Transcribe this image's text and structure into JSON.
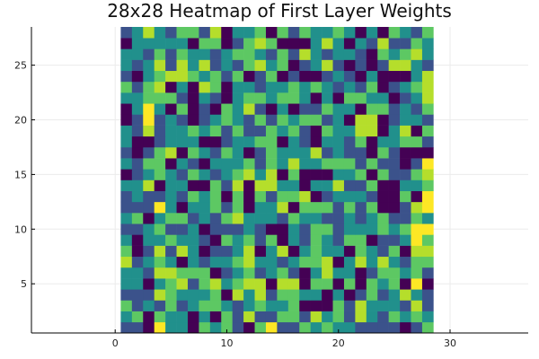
{
  "chart_data": {
    "type": "heatmap",
    "title": "28x28 Heatmap of First Layer Weights",
    "xlabel": "",
    "ylabel": "",
    "xlim": [
      -7.5,
      37
    ],
    "ylim": [
      0.5,
      28.5
    ],
    "xticks": [
      0,
      10,
      20,
      30
    ],
    "yticks": [
      5,
      10,
      15,
      20,
      25
    ],
    "grid": true,
    "colorscale": "viridis",
    "rows": [
      "1105220323103511323221111013",
      "2303220203141133142314213232",
      "3121312332123223000314222141",
      "1114322230424133220201312421",
      "2202341342344044033030323050",
      "2214433301231231024220133231",
      "4123202122342212334024242133",
      "3014142011240240232203213044",
      "2022322103231302132133011253",
      "1123112011121002133122232365",
      "2302331213422213221121231132",
      "1115202231302240333131300145",
      "1211213230303133401222100306",
      "2240220031404422022411300223",
      "0123213212342403000223031134",
      "2133021022231324223331311015",
      "1013403213201322241211031000",
      "2001222001223302102213022331",
      "2141223231311323103224402403",
      "0151210123213132331204401221",
      "0252030103241020113220331213",
      "2233310210233233202033220124",
      "3134020430221223232121301234",
      "1023443231301301001210200024",
      "2124142412134230124101014421",
      "2213132212332131421221032342",
      "0222220330134300024202141132",
      "1242133140223031322320203213"
    ],
    "note_rows": "rows listed from y=1 (bottom) to y=28 (top); each character is the cell value for x=1..28"
  }
}
